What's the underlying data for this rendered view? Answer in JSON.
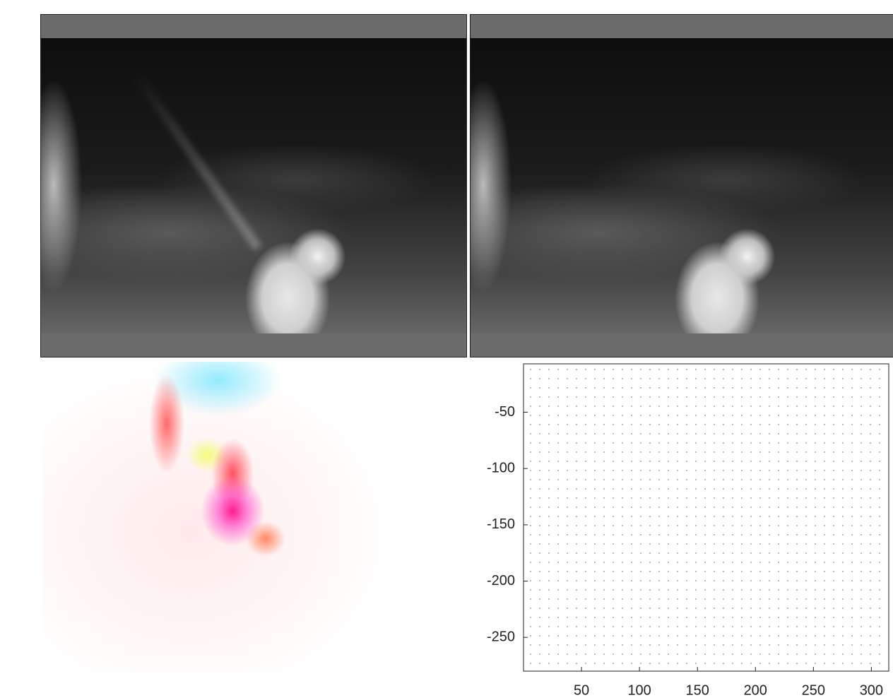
{
  "chart_data": {
    "type": "quiver",
    "xlim": [
      0,
      315
    ],
    "ylim": [
      -280,
      -7
    ],
    "xticks": [
      50,
      100,
      150,
      200,
      250,
      300
    ],
    "yticks": [
      -50,
      -100,
      -150,
      -200,
      -250
    ]
  }
}
